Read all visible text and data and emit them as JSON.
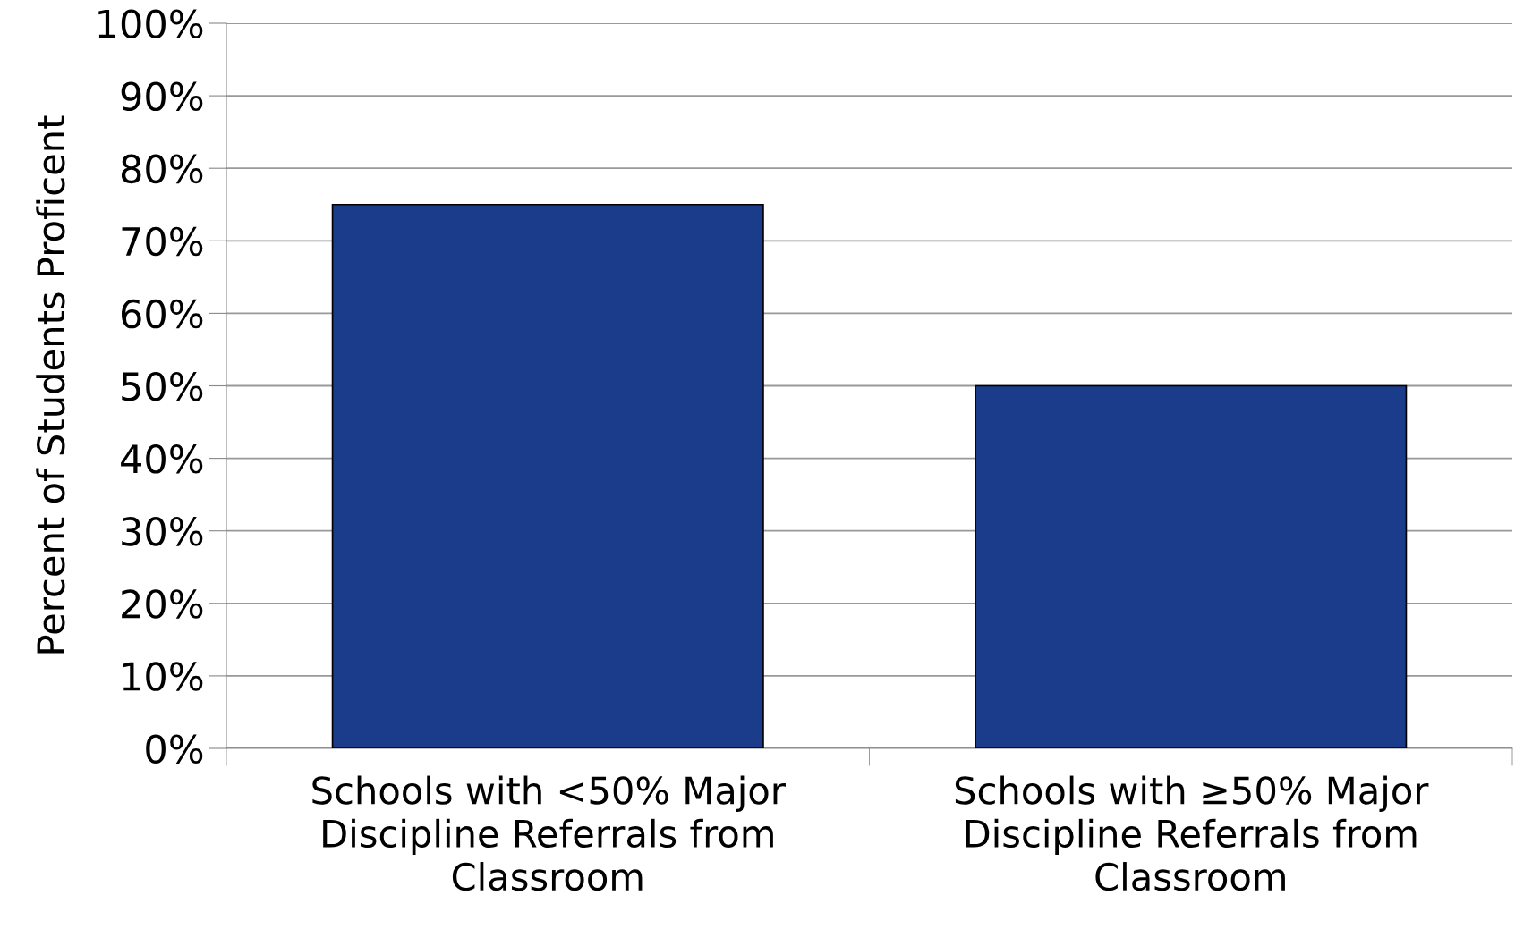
{
  "chart_data": {
    "type": "bar",
    "ylabel": "Percent of Students Proficent",
    "categories": [
      "Schools with <50% Major\nDiscipline Referrals from\nClassroom",
      "Schools with ≥50% Major\nDiscipline Referrals from\nClassroom"
    ],
    "values": [
      75,
      50
    ],
    "color": "#1a3c8a",
    "ylim": [
      0,
      100
    ],
    "yticks": [
      {
        "value": 0,
        "label": "0%"
      },
      {
        "value": 10,
        "label": "10%"
      },
      {
        "value": 20,
        "label": "20%"
      },
      {
        "value": 30,
        "label": "30%"
      },
      {
        "value": 40,
        "label": "40%"
      },
      {
        "value": 50,
        "label": "50%"
      },
      {
        "value": 60,
        "label": "60%"
      },
      {
        "value": 70,
        "label": "70%"
      },
      {
        "value": 80,
        "label": "80%"
      },
      {
        "value": 90,
        "label": "90%"
      },
      {
        "value": 100,
        "label": "100%"
      }
    ],
    "grid": "y"
  }
}
